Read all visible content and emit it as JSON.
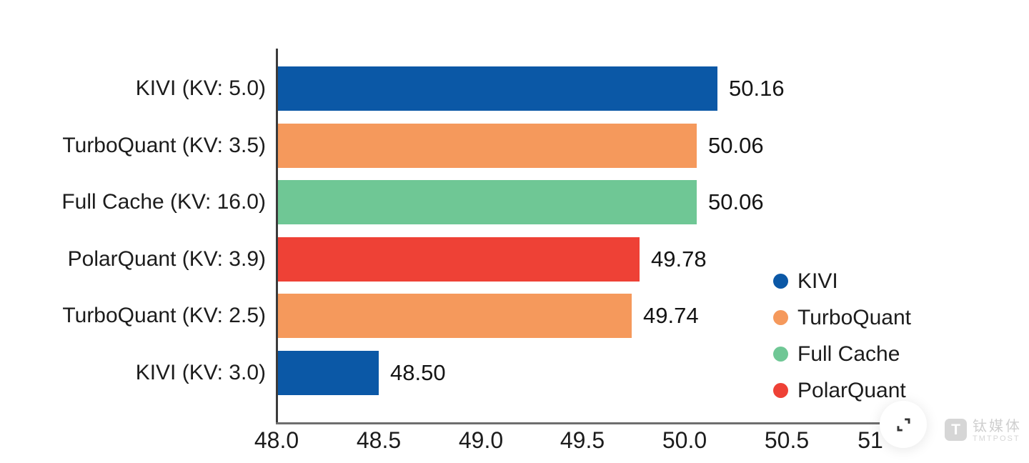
{
  "chart_data": {
    "type": "bar",
    "orientation": "horizontal",
    "title": "",
    "xlabel": "",
    "ylabel": "",
    "grid": false,
    "xlim": [
      48.0,
      51.0
    ],
    "categories": [
      "KIVI (KV: 5.0)",
      "TurboQuant (KV: 3.5)",
      "Full Cache (KV: 16.0)",
      "PolarQuant (KV: 3.9)",
      "TurboQuant (KV: 2.5)",
      "KIVI (KV: 3.0)"
    ],
    "values": [
      50.16,
      50.06,
      50.06,
      49.78,
      49.74,
      48.5
    ],
    "value_labels": [
      "50.16",
      "50.06",
      "50.06",
      "49.78",
      "49.74",
      "48.50"
    ],
    "bar_series": [
      "KIVI",
      "TurboQuant",
      "Full Cache",
      "PolarQuant",
      "TurboQuant",
      "KIVI"
    ],
    "bar_colors": [
      "#0b58a6",
      "#f5995c",
      "#6fc795",
      "#ee4136",
      "#f5995c",
      "#0b58a6"
    ],
    "x_ticks": [
      48.0,
      48.5,
      49.0,
      49.5,
      50.0,
      50.5,
      51.0
    ],
    "x_tick_labels": [
      "48.0",
      "48.5",
      "49.0",
      "49.5",
      "50.0",
      "50.5",
      "51"
    ],
    "legend_position": "lower right",
    "legend": [
      {
        "label": "KIVI",
        "color": "#0b58a6"
      },
      {
        "label": "TurboQuant",
        "color": "#f5995c"
      },
      {
        "label": "Full Cache",
        "color": "#6fc795"
      },
      {
        "label": "PolarQuant",
        "color": "#ee4136"
      }
    ]
  },
  "watermark": {
    "logo_letter": "T",
    "name_cn": "钛媒体",
    "name_en": "TMTPOST"
  },
  "colors": {
    "axis_left": "#3b3b3b",
    "axis_bottom": "#6e6e6e",
    "text": "#1c1c1c",
    "background": "#ffffff"
  }
}
